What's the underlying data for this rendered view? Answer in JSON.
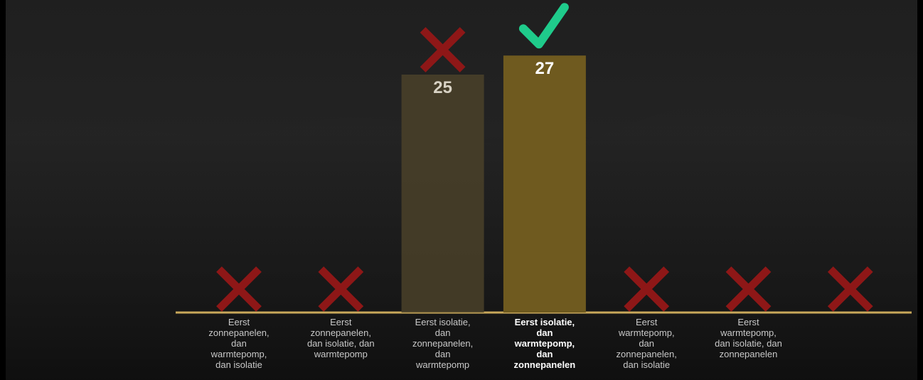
{
  "chart_data": {
    "type": "bar",
    "categories": [
      "Eerst zonnepanelen, dan warmtepomp, dan isolatie",
      "Eerst zonnepanelen, dan isolatie, dan warmtepomp",
      "Eerst isolatie, dan zonnepanelen, dan warmtepomp",
      "Eerst isolatie, dan warmtepomp, dan zonnepanelen",
      "Eerst warmtepomp, dan zonnepanelen, dan isolatie",
      "Eerst warmtepomp, dan isolatie, dan zonnepanelen",
      null
    ],
    "values": [
      null,
      null,
      25,
      27,
      null,
      null,
      null
    ],
    "color": "#6f5a1f",
    "faded_color": "#4a4129",
    "highlight": 3
  }
}
